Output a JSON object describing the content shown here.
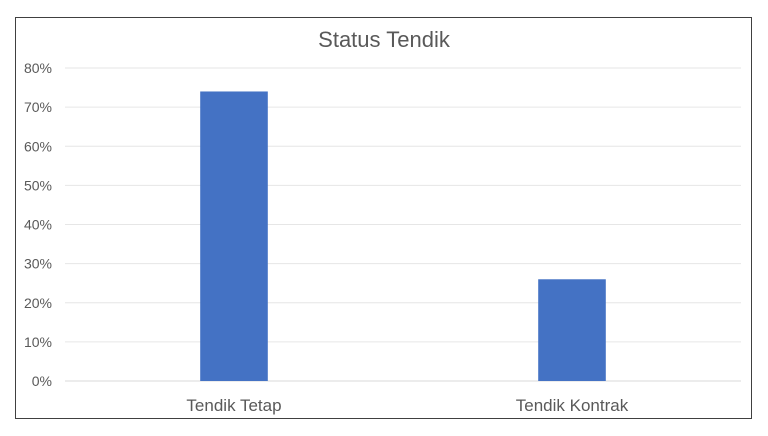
{
  "chart_data": {
    "type": "bar",
    "title": "Status Tendik",
    "categories": [
      "Tendik Tetap",
      "Tendik Kontrak"
    ],
    "values": [
      0.74,
      0.26
    ],
    "ylim": [
      0,
      0.8
    ],
    "yticks": [
      "0%",
      "10%",
      "20%",
      "30%",
      "40%",
      "50%",
      "60%",
      "70%",
      "80%"
    ],
    "xlabel": "",
    "ylabel": "",
    "grid": true,
    "legend": "none",
    "bar_color": "#4472C4"
  }
}
